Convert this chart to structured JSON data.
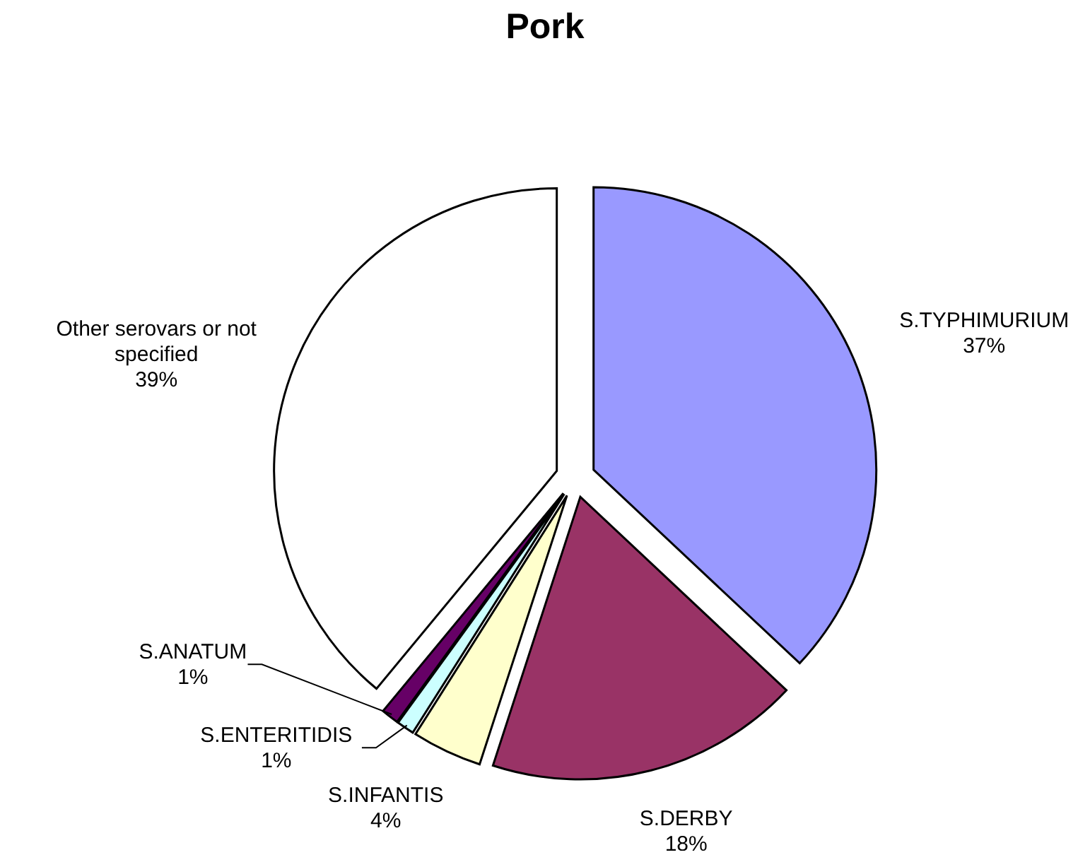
{
  "chart_data": {
    "type": "pie",
    "title": "Pork",
    "categories": [
      "S.TYPHIMURIUM",
      "S.DERBY",
      "S.INFANTIS",
      "S.ENTERITIDIS",
      "S.ANATUM",
      "Other serovars or not specified"
    ],
    "values": [
      37,
      18,
      4,
      1,
      1,
      39
    ],
    "value_labels": [
      "37%",
      "18%",
      "4%",
      "1%",
      "1%",
      "39%"
    ],
    "colors": [
      "#9999ff",
      "#993366",
      "#ffffcc",
      "#ccffff",
      "#660066",
      "#ffffff"
    ]
  }
}
